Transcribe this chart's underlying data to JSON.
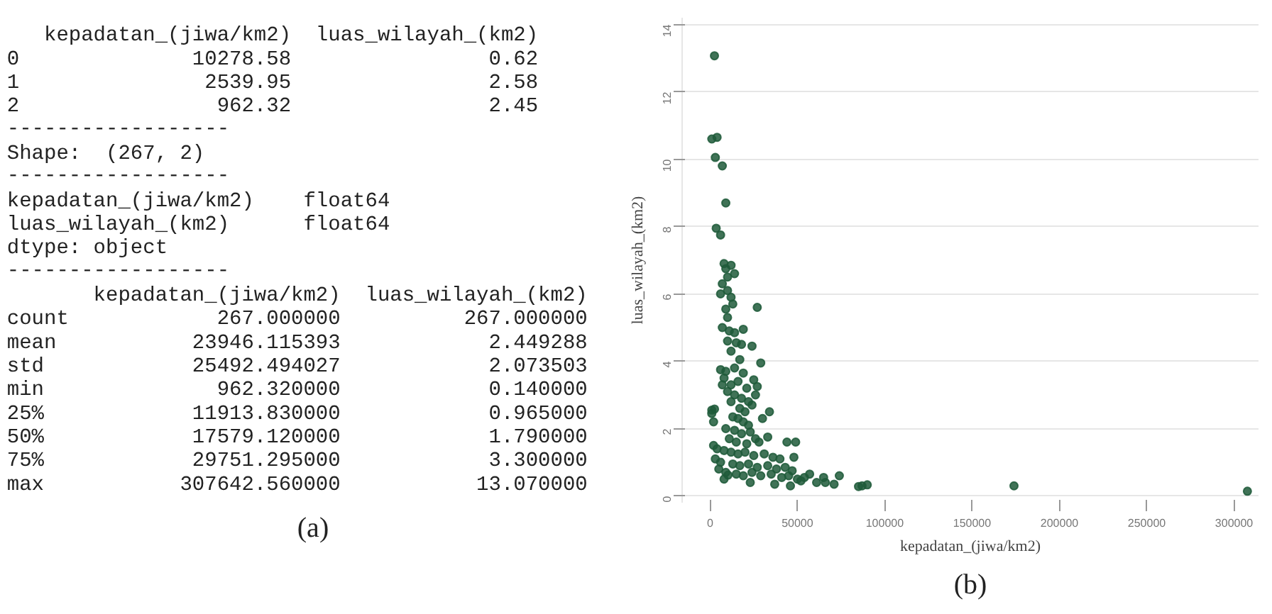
{
  "chart_data": [
    {
      "type": "other",
      "title": "(a)",
      "annotations": [
        "   kepadatan_(jiwa/km2)  luas_wilayah_(km2)",
        "0              10278.58                0.62",
        "1               2539.95                2.58",
        "2                962.32                2.45",
        "------------------",
        "Shape:  (267, 2)",
        "------------------",
        "kepadatan_(jiwa/km2)    float64",
        "luas_wilayah_(km2)      float64",
        "dtype: object",
        "------------------",
        "       kepadatan_(jiwa/km2)  luas_wilayah_(km2)",
        "count            267.000000          267.000000",
        "mean           23946.115393            2.449288",
        "std            25492.494027            2.073503",
        "min              962.320000            0.140000",
        "25%            11913.830000            0.965000",
        "50%            17579.120000            1.790000",
        "75%            29751.295000            3.300000",
        "max           307642.560000           13.070000"
      ]
    },
    {
      "type": "scatter",
      "title": "(b)",
      "xlabel": "kepadatan_(jiwa/km2)",
      "ylabel": "luas_wilayah_(km2)",
      "xlim": [
        -16000,
        314000
      ],
      "ylim": [
        -0.2,
        14.2
      ],
      "xticks": [
        0,
        50000,
        100000,
        150000,
        200000,
        250000,
        300000
      ],
      "yticks": [
        0,
        2,
        4,
        6,
        8,
        10,
        12,
        14
      ],
      "grid": "y",
      "marker": "circle",
      "series": [
        {
          "color": "#1e5a3a",
          "x": [
            2500,
            1000,
            4000,
            3000,
            7000,
            9000,
            3500,
            6000,
            8000,
            12000,
            9000,
            14000,
            10000,
            7000,
            6000,
            10000,
            12000,
            13000,
            9000,
            27000,
            10000,
            7000,
            11000,
            14000,
            19000,
            10000,
            15000,
            18000,
            24000,
            12000,
            29000,
            17000,
            6000,
            9000,
            14000,
            19000,
            8000,
            12000,
            16000,
            21000,
            25000,
            27000,
            7000,
            10000,
            14000,
            18000,
            22000,
            26000,
            12000,
            17000,
            20000,
            24000,
            34000,
            1000,
            2539.95,
            962.32,
            13000,
            16000,
            19000,
            22000,
            30000,
            2000,
            9000,
            14000,
            18000,
            23000,
            26000,
            33000,
            11000,
            15000,
            21000,
            28000,
            44000,
            49000,
            2000,
            4000,
            8000,
            12000,
            16000,
            20000,
            25000,
            31000,
            36000,
            40000,
            48000,
            3000,
            6000,
            10278.58,
            13000,
            17000,
            22000,
            27000,
            33000,
            38000,
            43000,
            47000,
            5000,
            9000,
            15000,
            19000,
            24000,
            29000,
            35000,
            41000,
            45000,
            50000,
            54000,
            57000,
            23000,
            8000,
            37000,
            46000,
            52000,
            61000,
            65000,
            66000,
            71000,
            74000,
            85000,
            87000,
            90000,
            174000,
            307642.56
          ],
          "values": [
            13.07,
            10.6,
            10.65,
            10.05,
            9.8,
            8.7,
            7.95,
            7.75,
            6.9,
            6.85,
            6.75,
            6.6,
            6.5,
            6.3,
            6.0,
            6.1,
            5.9,
            5.7,
            5.55,
            5.6,
            5.3,
            5.0,
            4.9,
            4.85,
            4.95,
            4.6,
            4.55,
            4.5,
            4.45,
            4.3,
            3.95,
            4.05,
            3.75,
            3.7,
            3.8,
            3.65,
            3.5,
            3.3,
            3.4,
            3.2,
            3.45,
            3.25,
            3.3,
            3.1,
            3.0,
            2.9,
            2.8,
            3.0,
            2.8,
            2.6,
            2.5,
            2.7,
            2.5,
            2.55,
            2.58,
            2.45,
            2.35,
            2.3,
            2.2,
            2.1,
            2.3,
            2.2,
            2.0,
            1.95,
            1.85,
            1.9,
            1.7,
            1.75,
            1.7,
            1.6,
            1.55,
            1.6,
            1.6,
            1.6,
            1.5,
            1.4,
            1.35,
            1.3,
            1.25,
            1.3,
            1.2,
            1.25,
            1.15,
            1.1,
            1.15,
            1.1,
            1.0,
            0.62,
            0.95,
            0.9,
            0.95,
            0.85,
            0.9,
            0.8,
            0.85,
            0.75,
            0.8,
            0.7,
            0.65,
            0.6,
            0.7,
            0.6,
            0.65,
            0.55,
            0.6,
            0.5,
            0.55,
            0.65,
            0.4,
            0.5,
            0.35,
            0.3,
            0.45,
            0.4,
            0.55,
            0.4,
            0.35,
            0.6,
            0.28,
            0.3,
            0.33,
            0.3,
            0.14
          ]
        }
      ]
    }
  ]
}
